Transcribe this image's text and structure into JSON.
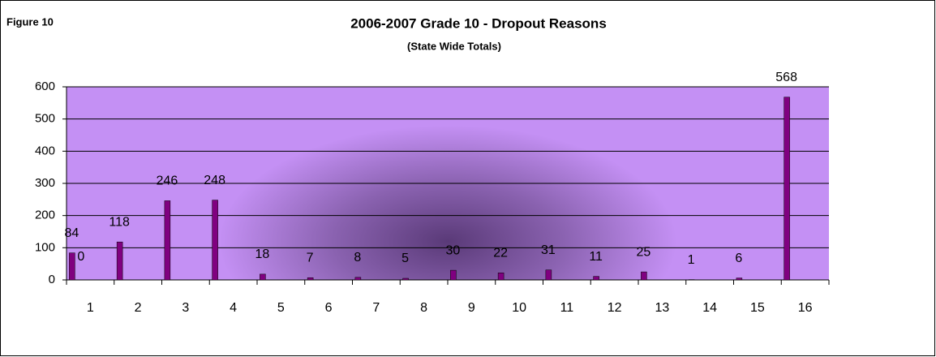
{
  "chart_data": {
    "type": "bar",
    "figure_label": "Figure 10",
    "title": "2006-2007 Grade 10 - Dropout Reasons",
    "subtitle": "(State Wide Totals)",
    "categories": [
      "1",
      "2",
      "3",
      "4",
      "5",
      "6",
      "7",
      "8",
      "9",
      "10",
      "11",
      "12",
      "13",
      "14",
      "15",
      "16"
    ],
    "series": [
      {
        "color": "#800080",
        "values": [
          84,
          118,
          246,
          248,
          18,
          7,
          8,
          5,
          30,
          22,
          31,
          11,
          25,
          1,
          6,
          568
        ]
      },
      {
        "color": "#800080",
        "values": [
          0,
          null,
          null,
          null,
          null,
          null,
          null,
          null,
          null,
          null,
          null,
          null,
          null,
          null,
          null,
          null
        ]
      }
    ],
    "ylim": [
      0,
      600
    ],
    "yticks": [
      0,
      100,
      200,
      300,
      400,
      500,
      600
    ],
    "grid": true
  }
}
